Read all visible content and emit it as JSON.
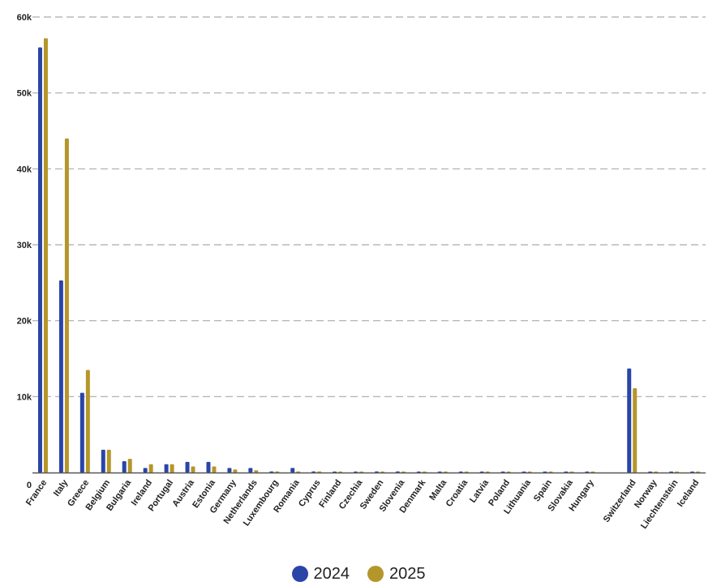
{
  "chart_data": {
    "type": "bar",
    "categories": [
      "France",
      "Italy",
      "Greece",
      "Belgium",
      "Bulgaria",
      "Ireland",
      "Portugal",
      "Austria",
      "Estonia",
      "Germany",
      "Netherlands",
      "Luxembourg",
      "Romania",
      "Cyprus",
      "Finland",
      "Czechia",
      "Sweden",
      "Slovenia",
      "Denmark",
      "Malta",
      "Croatia",
      "Latvia",
      "Poland",
      "Lithuania",
      "Spain",
      "Slovakia",
      "Hungary",
      "",
      "Switzerland",
      "Norway",
      "Liechtenstein",
      "Iceland"
    ],
    "series": [
      {
        "name": "2024",
        "color": "#2a45a8",
        "values": [
          56000,
          25300,
          10500,
          3000,
          1500,
          600,
          1100,
          1400,
          1400,
          600,
          600,
          150,
          600,
          150,
          100,
          60,
          150,
          150,
          50,
          50,
          50,
          50,
          50,
          50,
          50,
          50,
          50,
          0,
          13700,
          50,
          50,
          50
        ]
      },
      {
        "name": "2025",
        "color": "#b5962a",
        "values": [
          57200,
          44000,
          13500,
          3000,
          1800,
          1100,
          1100,
          800,
          800,
          400,
          300,
          150,
          150,
          150,
          100,
          50,
          50,
          50,
          50,
          50,
          50,
          50,
          50,
          50,
          50,
          50,
          50,
          0,
          11100,
          50,
          50,
          50
        ]
      }
    ],
    "yticks": [
      "0",
      "10k",
      "20k",
      "30k",
      "40k",
      "50k",
      "60k"
    ],
    "ytick_values": [
      0,
      10000,
      20000,
      30000,
      40000,
      50000,
      60000
    ],
    "ylim": [
      0,
      60000
    ],
    "grid": true,
    "legend_position": "bottom-center",
    "gridline_color": "#aaaaaa",
    "axis_color": "#555555"
  }
}
